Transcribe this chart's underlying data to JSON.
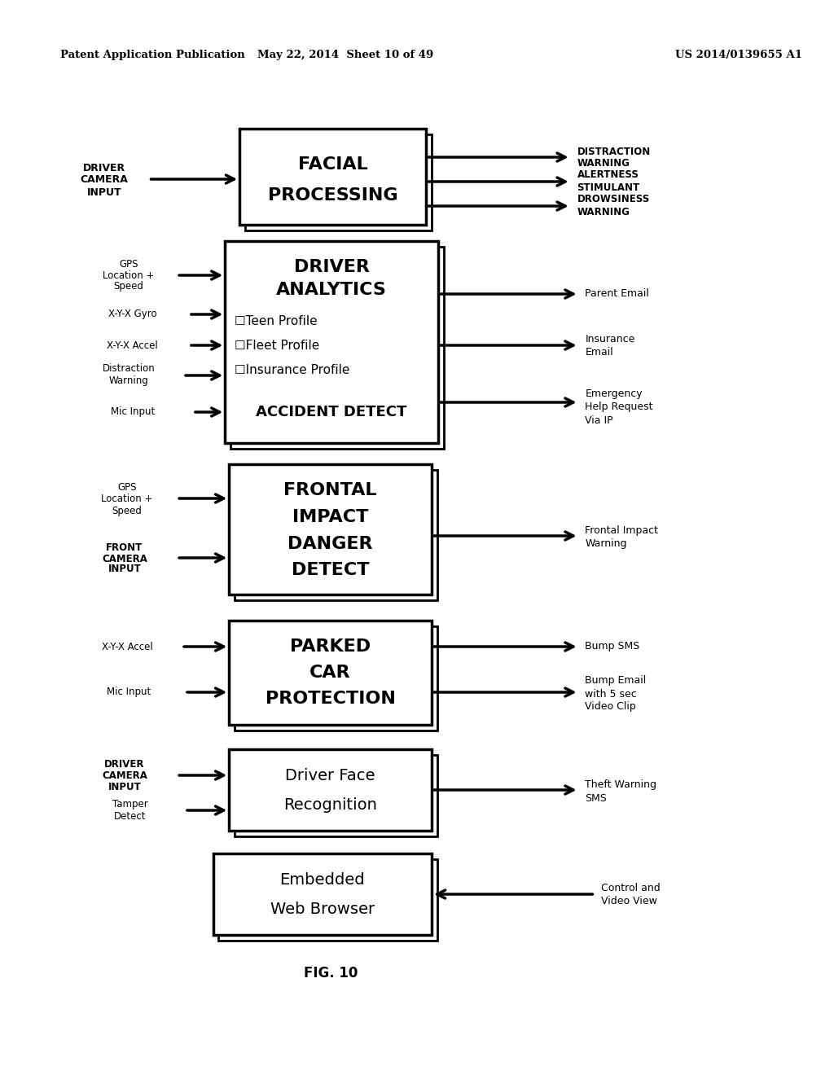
{
  "header_left": "Patent Application Publication",
  "header_mid": "May 22, 2014  Sheet 10 of 49",
  "header_right": "US 2014/0139655 A1",
  "figure_label": "FIG. 10",
  "background_color": "#ffffff"
}
